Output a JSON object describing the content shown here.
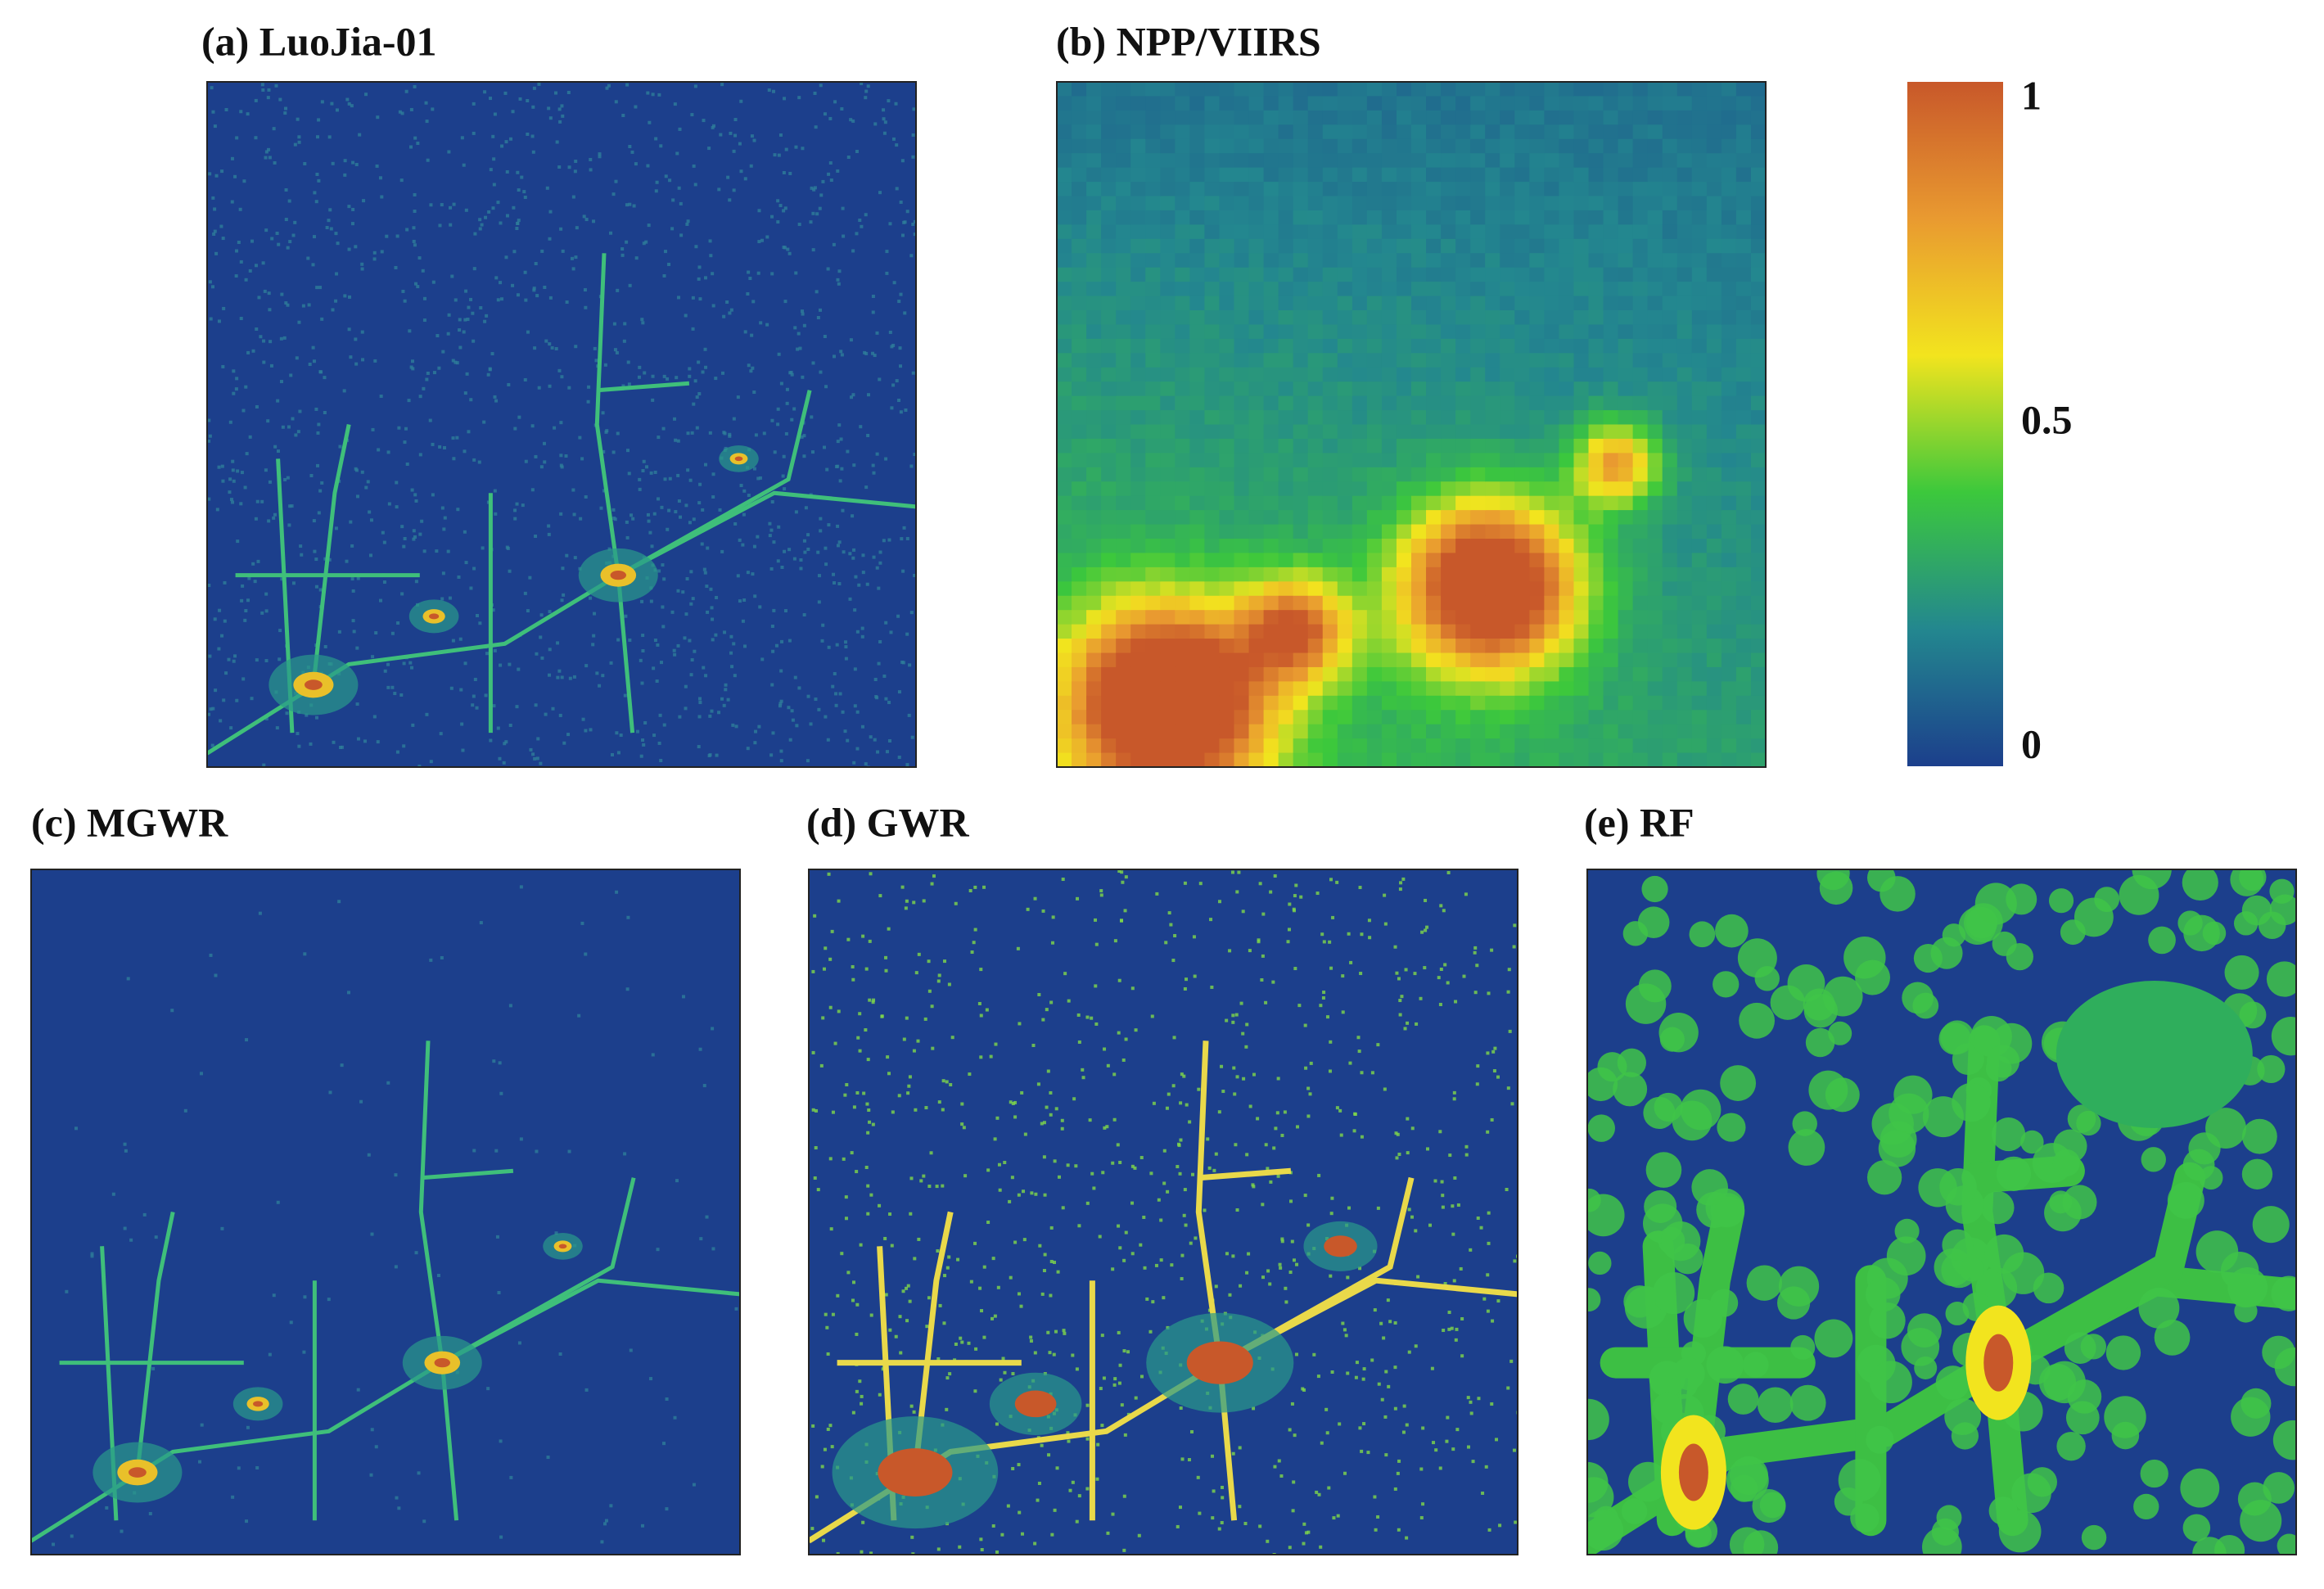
{
  "panels": [
    {
      "title": "(a) LuoJia-01"
    },
    {
      "title": "(b) NPP/VIIRS"
    },
    {
      "title": "(c) MGWR"
    },
    {
      "title": "(d) GWR"
    },
    {
      "title": "(e) RF"
    }
  ],
  "colorbar": {
    "lim": [
      0,
      1
    ],
    "ticks": [
      0,
      0.5,
      1
    ],
    "colors": [
      "#1c3f8c",
      "#23878f",
      "#3cc83c",
      "#f2e41e",
      "#e99a30",
      "#c8582a"
    ]
  }
}
